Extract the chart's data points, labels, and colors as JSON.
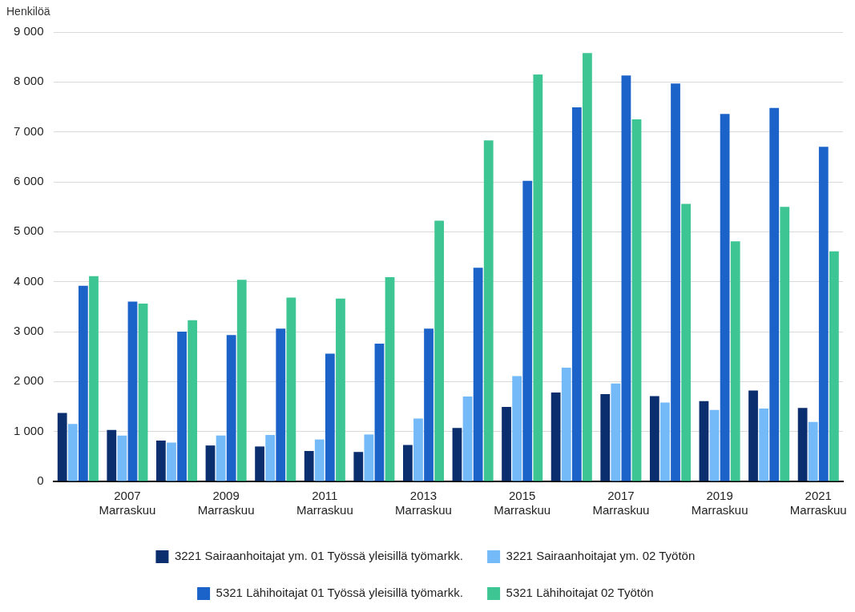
{
  "chart_data": {
    "type": "bar",
    "ylabel": "Henkilöä",
    "categories": [
      null,
      "2007 Marraskuu",
      null,
      "2009 Marraskuu",
      null,
      "2011 Marraskuu",
      null,
      "2013 Marraskuu",
      null,
      "2015 Marraskuu",
      null,
      "2017 Marraskuu",
      null,
      "2019 Marraskuu",
      null,
      "2021 Marraskuu"
    ],
    "series": [
      {
        "name": "3221 Sairaanhoitajat ym. 01 Työssä yleisillä työmarkk.",
        "color": "#0b2f6e",
        "values": [
          1370,
          1030,
          820,
          720,
          700,
          610,
          590,
          730,
          1070,
          1490,
          1780,
          1750,
          1710,
          1610,
          1820,
          1470
        ]
      },
      {
        "name": "3221 Sairaanhoitajat ym. 02 Työtön",
        "color": "#74b9f8",
        "values": [
          1150,
          920,
          780,
          920,
          930,
          840,
          940,
          1260,
          1700,
          2110,
          2280,
          1960,
          1580,
          1430,
          1460,
          1190
        ]
      },
      {
        "name": "5321 Lähihoitajat 01 Työssä yleisillä työmarkk.",
        "color": "#1b63c9",
        "values": [
          3920,
          3600,
          3000,
          2930,
          3060,
          2560,
          2760,
          3060,
          4280,
          6020,
          7490,
          8130,
          7970,
          7360,
          7480,
          6700
        ]
      },
      {
        "name": "5321 Lähihoitajat 02 Työtön",
        "color": "#3dc693",
        "values": [
          4110,
          3560,
          3230,
          4040,
          3680,
          3660,
          4090,
          5220,
          6830,
          8150,
          8580,
          7250,
          5560,
          4810,
          5500,
          4610
        ]
      }
    ],
    "ylim": [
      0,
      9000
    ],
    "yticks": [
      0,
      {
        "value": 1000,
        "label": "1 000"
      },
      {
        "value": 2000,
        "label": "2 000"
      },
      {
        "value": 3000,
        "label": "3 000"
      },
      {
        "value": 4000,
        "label": "4 000"
      },
      {
        "value": 5000,
        "label": "5 000"
      },
      {
        "value": 6000,
        "label": "6 000"
      },
      {
        "value": 7000,
        "label": "7 000"
      },
      {
        "value": 8000,
        "label": "8 000"
      },
      {
        "value": 9000,
        "label": "9 000"
      }
    ],
    "grid": "y",
    "legend": "bottom"
  }
}
